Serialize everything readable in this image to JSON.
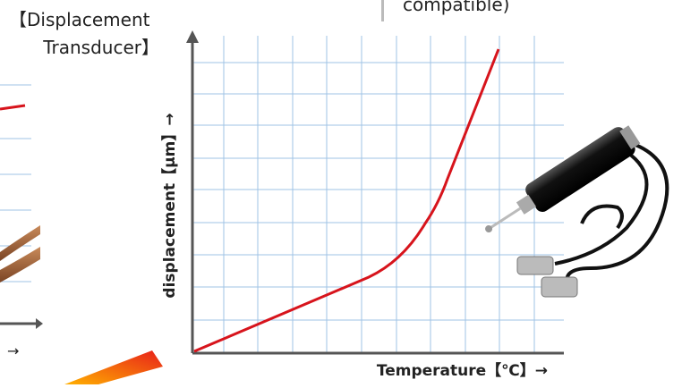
{
  "header": {
    "title_line1": "【Displacement",
    "title_line2": "Transducer】",
    "top_note": "compatible)"
  },
  "left_panel": {
    "axis_arrow": "→"
  },
  "chart": {
    "y_label": "displacement【μm】→",
    "x_label": "Temperature【℃】→"
  }
}
